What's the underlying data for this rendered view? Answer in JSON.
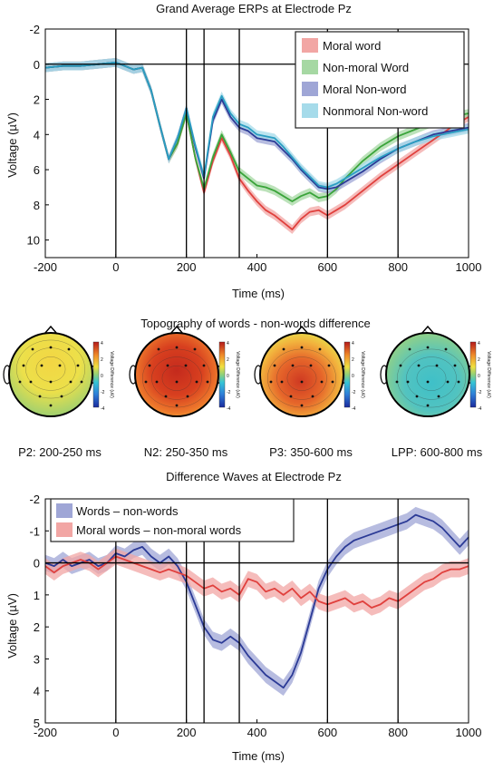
{
  "figure": {
    "panel_a_title": "Grand Average ERPs at Electrode Pz",
    "panel_b_title": "Topography of words - non-words difference",
    "panel_c_title": "Difference Waves at Electrode Pz",
    "colorbar_label": "Voltage Difference (uV)",
    "colorbar_ticks": [
      "4",
      "2",
      "0",
      "-2",
      "-4"
    ]
  },
  "chart_data": [
    {
      "type": "line",
      "title": "Grand Average ERPs at Electrode Pz",
      "xlabel": "Time (ms)",
      "ylabel": "Voltage (µV)",
      "xlim": [
        -200,
        1000
      ],
      "ylim": [
        -2,
        11
      ],
      "y_inverted": true,
      "xticks": [
        "-200",
        "0",
        "200",
        "400",
        "600",
        "800",
        "1000"
      ],
      "yticks": [
        "-2",
        "0",
        "2",
        "4",
        "6",
        "8",
        "10"
      ],
      "vlines": [
        0,
        200,
        250,
        350,
        600,
        800
      ],
      "hlines": [
        0
      ],
      "legend_position": "top-right",
      "x": [
        -200,
        -150,
        -100,
        -50,
        0,
        25,
        50,
        75,
        100,
        125,
        150,
        175,
        200,
        225,
        250,
        275,
        300,
        325,
        350,
        375,
        400,
        425,
        450,
        475,
        500,
        525,
        550,
        575,
        600,
        625,
        650,
        700,
        750,
        800,
        850,
        900,
        950,
        1000
      ],
      "series": [
        {
          "name": "Moral word",
          "color": "#e0403d",
          "band": "#f2a6a4",
          "values": [
            0.2,
            0.1,
            0.1,
            0,
            -0.1,
            0.1,
            0.3,
            0.2,
            1.5,
            3.5,
            5.4,
            4.5,
            2.8,
            5.3,
            7.3,
            5.5,
            4.2,
            5.2,
            6.5,
            7.2,
            7.8,
            8.3,
            8.6,
            9.0,
            9.4,
            8.8,
            8.4,
            8.3,
            8.6,
            8.3,
            8.0,
            7.2,
            6.4,
            5.7,
            5.0,
            4.3,
            3.6,
            3.0
          ]
        },
        {
          "name": "Non-moral Word",
          "color": "#3aa43a",
          "band": "#a6d8a3",
          "values": [
            0.2,
            0.1,
            0.1,
            0,
            -0.1,
            0.1,
            0.3,
            0.2,
            1.5,
            3.5,
            5.4,
            4.5,
            2.8,
            5.3,
            7.1,
            5.3,
            4.0,
            5.0,
            6.1,
            6.5,
            6.9,
            7.0,
            7.2,
            7.5,
            7.8,
            7.5,
            7.3,
            7.6,
            7.5,
            7.1,
            6.5,
            5.5,
            4.7,
            4.1,
            3.7,
            3.3,
            3.0,
            2.8
          ]
        },
        {
          "name": "Moral Non-word",
          "color": "#2b3a96",
          "band": "#9fa6d6",
          "values": [
            0.2,
            0.1,
            0.1,
            0,
            -0.1,
            0.1,
            0.3,
            0.2,
            1.5,
            3.5,
            5.4,
            4.2,
            2.5,
            4.7,
            6.5,
            3.2,
            2.0,
            3.0,
            3.6,
            3.8,
            4.2,
            4.3,
            4.4,
            4.9,
            5.4,
            6.0,
            6.5,
            7.0,
            7.1,
            7.0,
            6.7,
            6.1,
            5.4,
            4.8,
            4.4,
            4.0,
            3.8,
            3.6
          ]
        },
        {
          "name": "Nonmoral Non-word",
          "color": "#2a9ec2",
          "band": "#a6dbea",
          "values": [
            0.2,
            0.1,
            0.1,
            0,
            -0.1,
            0.1,
            0.3,
            0.2,
            1.5,
            3.5,
            5.4,
            4.2,
            2.5,
            4.6,
            6.4,
            3.0,
            1.8,
            2.8,
            3.4,
            3.6,
            4.0,
            4.1,
            4.2,
            4.7,
            5.3,
            5.9,
            6.4,
            6.9,
            7.0,
            6.8,
            6.5,
            5.9,
            5.3,
            4.8,
            4.4,
            4.1,
            3.9,
            3.7
          ]
        }
      ]
    },
    {
      "type": "heatmap",
      "title": "Topography of words - non-words difference",
      "colorbar_range": [
        -4,
        4
      ],
      "colorbar_label": "Voltage Difference (uV)",
      "maps": [
        {
          "label": "P2: 200-250 ms",
          "mean_value": 1.0,
          "posterior_value": 0.3
        },
        {
          "label": "N2: 250-350 ms",
          "mean_value": 3.0,
          "posterior_value": 3.6
        },
        {
          "label": "P3: 350-600 ms",
          "mean_value": 1.6,
          "posterior_value": 3.2
        },
        {
          "label": "LPP: 600-800 ms",
          "mean_value": -0.6,
          "posterior_value": -1.0
        }
      ]
    },
    {
      "type": "line",
      "title": "Difference Waves at Electrode Pz",
      "xlabel": "Time (ms)",
      "ylabel": "Voltage (µV)",
      "xlim": [
        -200,
        1000
      ],
      "ylim": [
        -2,
        5
      ],
      "y_inverted": true,
      "xticks": [
        "-200",
        "0",
        "200",
        "400",
        "600",
        "800",
        "1000"
      ],
      "yticks": [
        "-2",
        "-1",
        "0",
        "1",
        "2",
        "3",
        "4",
        "5"
      ],
      "vlines": [
        0,
        200,
        250,
        350,
        600,
        800
      ],
      "hlines": [
        0
      ],
      "legend_position": "top-left",
      "x": [
        -200,
        -175,
        -150,
        -125,
        -100,
        -75,
        -50,
        -25,
        0,
        25,
        50,
        75,
        100,
        125,
        150,
        175,
        200,
        225,
        250,
        275,
        300,
        325,
        350,
        375,
        400,
        425,
        450,
        475,
        500,
        525,
        550,
        575,
        600,
        625,
        650,
        675,
        700,
        725,
        750,
        775,
        800,
        825,
        850,
        875,
        900,
        925,
        950,
        975,
        1000
      ],
      "series": [
        {
          "name": "Words – non-words",
          "color": "#2b3a96",
          "band": "#9fa6d6",
          "values": [
            0,
            0.1,
            -0.1,
            0.1,
            0,
            -0.1,
            0.1,
            0,
            -0.3,
            -0.2,
            -0.4,
            -0.5,
            -0.2,
            0,
            -0.2,
            0.1,
            0.6,
            1.3,
            2.0,
            2.4,
            2.5,
            2.3,
            2.5,
            2.9,
            3.2,
            3.5,
            3.7,
            3.9,
            3.5,
            2.8,
            1.8,
            0.8,
            0.2,
            -0.2,
            -0.5,
            -0.7,
            -0.8,
            -0.9,
            -1.0,
            -1.1,
            -1.2,
            -1.3,
            -1.5,
            -1.4,
            -1.3,
            -1.1,
            -0.8,
            -0.5,
            -0.8
          ]
        },
        {
          "name": "Moral words – non-moral words",
          "color": "#e0403d",
          "band": "#f2a6a4",
          "values": [
            0.1,
            0.3,
            0.1,
            0,
            -0.1,
            0,
            0.2,
            0,
            -0.2,
            -0.1,
            0,
            0.1,
            0.2,
            0.3,
            0.2,
            0.3,
            0.4,
            0.6,
            0.8,
            0.7,
            0.9,
            0.8,
            1.0,
            0.5,
            0.6,
            0.9,
            0.8,
            1.0,
            0.8,
            1.1,
            0.9,
            1.2,
            1.3,
            1.2,
            1.1,
            1.3,
            1.2,
            1.4,
            1.3,
            1.1,
            1.2,
            1.0,
            0.8,
            0.6,
            0.5,
            0.3,
            0.2,
            0.2,
            0.1
          ]
        }
      ]
    }
  ]
}
